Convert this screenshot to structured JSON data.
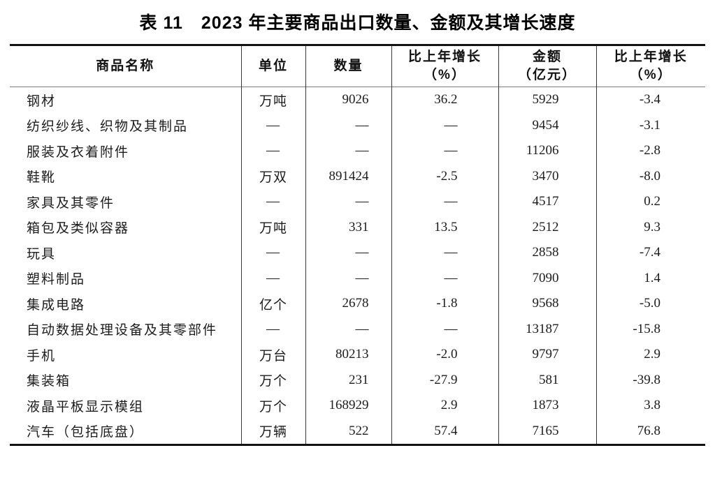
{
  "page_title": "表 11　2023 年主要商品出口数量、金额及其增长速度",
  "colors": {
    "background": "#ffffff",
    "text": "#1c1c1c",
    "border_heavy": "#121212",
    "border_light": "#3a3a3a",
    "header_rule": "#7d7d7d"
  },
  "table": {
    "headers": [
      {
        "line1": "商品名称",
        "line2": ""
      },
      {
        "line1": "单位",
        "line2": ""
      },
      {
        "line1": "数量",
        "line2": ""
      },
      {
        "line1": "比上年增长",
        "line2": "（%）"
      },
      {
        "line1": "金额",
        "line2": "（亿元）"
      },
      {
        "line1": "比上年增长",
        "line2": "（%）"
      }
    ],
    "rows": [
      [
        "钢材",
        "万吨",
        "9026",
        "36.2",
        "5929",
        "-3.4"
      ],
      [
        "纺织纱线、织物及其制品",
        "—",
        "—",
        "—",
        "9454",
        "-3.1"
      ],
      [
        "服装及衣着附件",
        "—",
        "—",
        "—",
        "11206",
        "-2.8"
      ],
      [
        "鞋靴",
        "万双",
        "891424",
        "-2.5",
        "3470",
        "-8.0"
      ],
      [
        "家具及其零件",
        "—",
        "—",
        "—",
        "4517",
        "0.2"
      ],
      [
        "箱包及类似容器",
        "万吨",
        "331",
        "13.5",
        "2512",
        "9.3"
      ],
      [
        "玩具",
        "—",
        "—",
        "—",
        "2858",
        "-7.4"
      ],
      [
        "塑料制品",
        "—",
        "—",
        "—",
        "7090",
        "1.4"
      ],
      [
        "集成电路",
        "亿个",
        "2678",
        "-1.8",
        "9568",
        "-5.0"
      ],
      [
        "自动数据处理设备及其零部件",
        "—",
        "—",
        "—",
        "13187",
        "-15.8"
      ],
      [
        "手机",
        "万台",
        "80213",
        "-2.0",
        "9797",
        "2.9"
      ],
      [
        "集装箱",
        "万个",
        "231",
        "-27.9",
        "581",
        "-39.8"
      ],
      [
        "液晶平板显示模组",
        "万个",
        "168929",
        "2.9",
        "1873",
        "3.8"
      ],
      [
        "汽车（包括底盘）",
        "万辆",
        "522",
        "57.4",
        "7165",
        "76.8"
      ]
    ]
  }
}
